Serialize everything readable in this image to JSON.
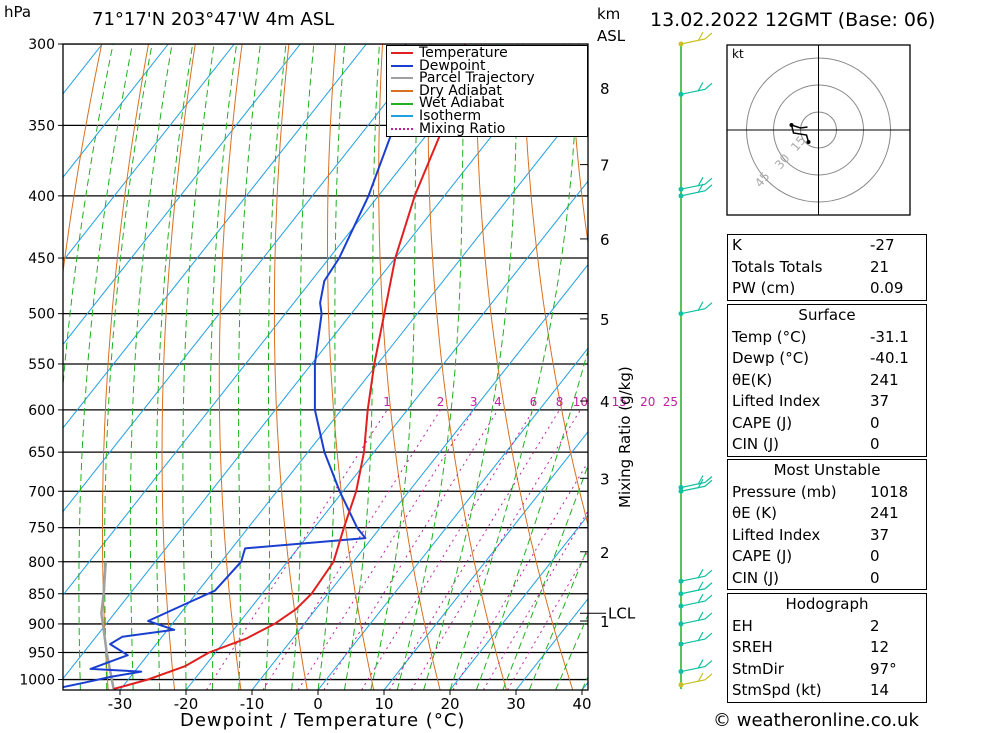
{
  "header": {
    "pressure_unit": "hPa",
    "location": "71°17'N  203°47'W  4m  ASL",
    "km_unit": "km",
    "asl": "ASL",
    "datetime": "13.02.2022  12GMT  (Base: 06)"
  },
  "chart_data": {
    "type": "skew-t",
    "xlabel": "Dewpoint / Temperature (°C)",
    "y2label": "Mixing Ratio (g/kg)",
    "pressure_ticks": [
      300,
      350,
      400,
      450,
      500,
      550,
      600,
      650,
      700,
      750,
      800,
      850,
      900,
      950,
      1000
    ],
    "temperature_ticks": [
      -30,
      -20,
      -10,
      0,
      10,
      20,
      30,
      40
    ],
    "xlim": [
      -40,
      40
    ],
    "ylim": [
      1020,
      300
    ],
    "km_ticks": [
      {
        "label": "8",
        "p": 326
      },
      {
        "label": "7",
        "p": 377
      },
      {
        "label": "6",
        "p": 434
      },
      {
        "label": "5",
        "p": 505
      },
      {
        "label": "4",
        "p": 590
      },
      {
        "label": "3",
        "p": 683
      },
      {
        "label": "2",
        "p": 785
      },
      {
        "label": "1",
        "p": 895
      }
    ],
    "lcl": {
      "label": "LCL",
      "p": 882
    },
    "mixing_ratio_labels": [
      "1",
      "2",
      "3",
      "4",
      "6",
      "8",
      "10",
      "15",
      "20",
      "25"
    ],
    "legend": [
      "Temperature",
      "Dewpoint",
      "Parcel Trajectory",
      "Dry Adiabat",
      "Wet Adiabat",
      "Isotherm",
      "Mixing Ratio"
    ],
    "legend_colors": [
      "#e02020",
      "#1a3fd0",
      "#a0a0a0",
      "#d87020",
      "#20b020",
      "#20a0e0",
      "#c020a0"
    ],
    "temperature": [
      {
        "p": 1018,
        "t": -31.1
      },
      {
        "p": 1000,
        "t": -27
      },
      {
        "p": 975,
        "t": -23
      },
      {
        "p": 950,
        "t": -21
      },
      {
        "p": 925,
        "t": -17
      },
      {
        "p": 900,
        "t": -14.5
      },
      {
        "p": 875,
        "t": -13
      },
      {
        "p": 850,
        "t": -12.5
      },
      {
        "p": 800,
        "t": -13
      },
      {
        "p": 750,
        "t": -15.5
      },
      {
        "p": 700,
        "t": -18
      },
      {
        "p": 650,
        "t": -21.5
      },
      {
        "p": 600,
        "t": -26
      },
      {
        "p": 550,
        "t": -30.5
      },
      {
        "p": 500,
        "t": -35
      },
      {
        "p": 450,
        "t": -40
      },
      {
        "p": 400,
        "t": -44.5
      },
      {
        "p": 350,
        "t": -48.5
      },
      {
        "p": 300,
        "t": -55
      }
    ],
    "dewpoint": [
      {
        "p": 1018,
        "t": -40.1
      },
      {
        "p": 1005,
        "t": -36
      },
      {
        "p": 995,
        "t": -33
      },
      {
        "p": 985,
        "t": -29
      },
      {
        "p": 980,
        "t": -37
      },
      {
        "p": 955,
        "t": -33
      },
      {
        "p": 935,
        "t": -37
      },
      {
        "p": 922,
        "t": -36
      },
      {
        "p": 910,
        "t": -29
      },
      {
        "p": 895,
        "t": -34
      },
      {
        "p": 860,
        "t": -29.5
      },
      {
        "p": 845,
        "t": -27.5
      },
      {
        "p": 800,
        "t": -27
      },
      {
        "p": 780,
        "t": -28
      },
      {
        "p": 765,
        "t": -11
      },
      {
        "p": 750,
        "t": -13.5
      },
      {
        "p": 700,
        "t": -20.5
      },
      {
        "p": 650,
        "t": -27.5
      },
      {
        "p": 600,
        "t": -34
      },
      {
        "p": 550,
        "t": -39.5
      },
      {
        "p": 500,
        "t": -44.5
      },
      {
        "p": 490,
        "t": -46
      },
      {
        "p": 470,
        "t": -48
      },
      {
        "p": 450,
        "t": -48.5
      },
      {
        "p": 400,
        "t": -51.5
      },
      {
        "p": 350,
        "t": -56
      },
      {
        "p": 300,
        "t": -64
      }
    ],
    "parcel": [
      {
        "p": 1018,
        "t": -31.1
      },
      {
        "p": 950,
        "t": -36.5
      },
      {
        "p": 900,
        "t": -40.5
      },
      {
        "p": 882,
        "t": -42
      },
      {
        "p": 850,
        "t": -44
      },
      {
        "p": 800,
        "t": -47.5
      }
    ],
    "wind_barb_pressures": [
      300,
      330,
      395,
      400,
      500,
      695,
      700,
      830,
      850,
      870,
      900,
      935,
      985,
      1010
    ]
  },
  "hodograph": {
    "unit": "kt",
    "rings": [
      "15",
      "30",
      "45"
    ]
  },
  "indices": {
    "k": {
      "label": "K",
      "value": "-27"
    },
    "tt": {
      "label": "Totals Totals",
      "value": "21"
    },
    "pw": {
      "label": "PW (cm)",
      "value": "0.09"
    }
  },
  "surface": {
    "title": "Surface",
    "temp": {
      "label": "Temp (°C)",
      "value": "-31.1"
    },
    "dewp": {
      "label": "Dewp (°C)",
      "value": "-40.1"
    },
    "thetae": {
      "label": "θE(K)",
      "value": "241"
    },
    "li": {
      "label": "Lifted Index",
      "value": "37"
    },
    "cape": {
      "label": "CAPE (J)",
      "value": "0"
    },
    "cin": {
      "label": "CIN (J)",
      "value": "0"
    }
  },
  "most_unstable": {
    "title": "Most Unstable",
    "pressure": {
      "label": "Pressure (mb)",
      "value": "1018"
    },
    "thetae": {
      "label": "θE (K)",
      "value": "241"
    },
    "li": {
      "label": "Lifted Index",
      "value": "37"
    },
    "cape": {
      "label": "CAPE (J)",
      "value": "0"
    },
    "cin": {
      "label": "CIN (J)",
      "value": "0"
    }
  },
  "hodo_params": {
    "title": "Hodograph",
    "eh": {
      "label": "EH",
      "value": "2"
    },
    "sreh": {
      "label": "SREH",
      "value": "12"
    },
    "stmdir": {
      "label": "StmDir",
      "value": "97°"
    },
    "stmspd": {
      "label": "StmSpd (kt)",
      "value": "14"
    }
  },
  "footer": {
    "copyright": "© weatheronline.co.uk"
  }
}
